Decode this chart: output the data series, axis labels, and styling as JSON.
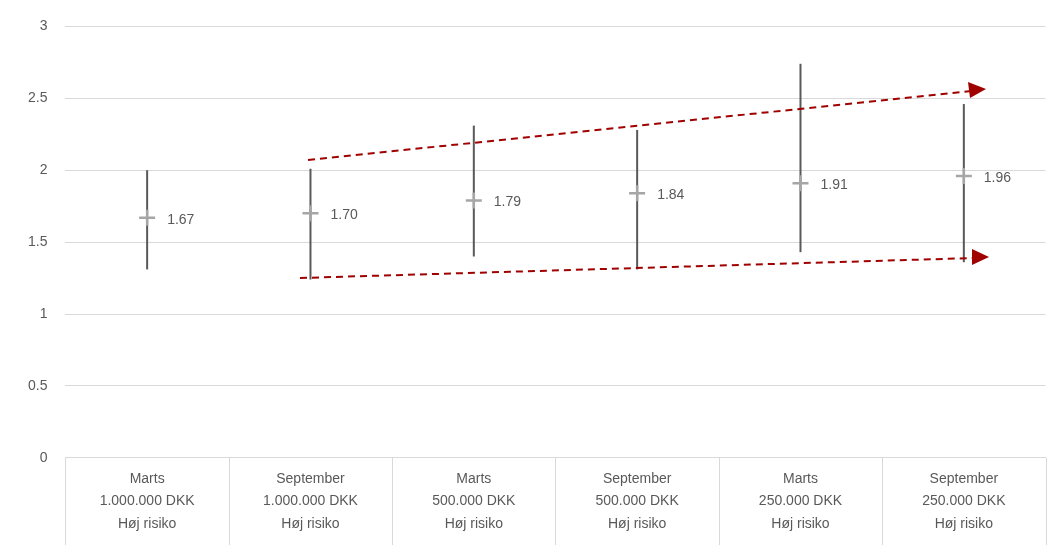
{
  "chart_data": {
    "type": "scatter",
    "categories": [
      "Marts\n1.000.000 DKK\nHøj risiko",
      "September\n1.000.000 DKK\nHøj risiko",
      "Marts\n500.000 DKK\nHøj risiko",
      "September\n500.000 DKK\nHøj risiko",
      "Marts\n250.000 DKK\nHøj risiko",
      "September\n250.000 DKK\nHøj risiko"
    ],
    "series": [
      {
        "color": "#a6a6a6",
        "values": [
          1.67,
          1.7,
          1.79,
          1.84,
          1.91,
          1.96
        ],
        "errors": [
          [
            1.31,
            2.0
          ],
          [
            1.24,
            2.01
          ],
          [
            1.4,
            2.31
          ],
          [
            1.31,
            2.28
          ],
          [
            1.43,
            2.74
          ],
          [
            1.36,
            2.46
          ]
        ],
        "value_labels": [
          "1.67",
          "1.70",
          "1.79",
          "1.84",
          "1.91",
          "1.96"
        ]
      }
    ],
    "ylim": [
      0,
      3
    ],
    "yticks": [
      0,
      0.5,
      1,
      1.5,
      2,
      2.5,
      3
    ],
    "grid": "y",
    "legend": false,
    "marker": "cross"
  }
}
